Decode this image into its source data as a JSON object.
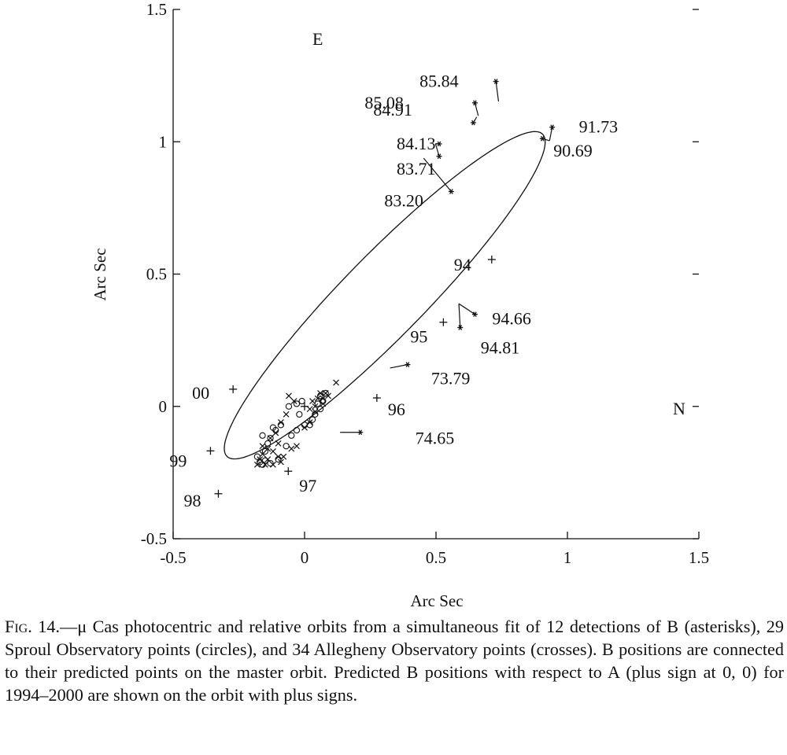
{
  "chart_data": {
    "type": "scatter",
    "xlabel": "Arc Sec",
    "ylabel": "Arc Sec",
    "xlim": [
      -0.5,
      1.5
    ],
    "ylim": [
      -0.5,
      1.5
    ],
    "xticks": [
      -0.5,
      0,
      0.5,
      1,
      1.5
    ],
    "yticks": [
      -0.5,
      0,
      0.5,
      1,
      1.5
    ],
    "xtick_labels": [
      "-0.5",
      "0",
      "0.5",
      "1",
      "1.5"
    ],
    "ytick_labels": [
      "-0.5",
      "0",
      "0.5",
      "1",
      "1.5"
    ],
    "direction_labels": {
      "east": "E",
      "north": "N"
    },
    "grid": false,
    "orbit": {
      "center": [
        0.305,
        0.42
      ],
      "semi_major": 0.855,
      "semi_minor": 0.155,
      "angle_deg": 45.4
    },
    "detections": [
      {
        "label": "85.84",
        "obs": [
          0.728,
          1.228
        ],
        "pred": [
          0.738,
          1.152
        ]
      },
      {
        "label": "85.08",
        "obs": [
          0.648,
          1.147
        ],
        "pred": [
          0.661,
          1.098
        ]
      },
      {
        "label": "84.91",
        "obs": [
          0.642,
          1.072
        ],
        "pred": [
          0.655,
          1.094
        ]
      },
      {
        "label": "91.73",
        "obs": [
          0.942,
          1.055
        ],
        "pred": [
          0.932,
          1.004
        ]
      },
      {
        "label": "90.69",
        "obs": [
          0.905,
          1.012
        ],
        "pred": [
          0.932,
          1.004
        ]
      },
      {
        "label": "84.13",
        "obs": [
          0.512,
          0.992
        ],
        "pred": [
          0.498,
          0.993
        ]
      },
      {
        "label": "83.71",
        "obs": [
          0.512,
          0.945
        ],
        "pred": [
          0.498,
          0.993
        ]
      },
      {
        "label": "83.20",
        "obs": [
          0.558,
          0.812
        ],
        "pred": [
          0.453,
          0.938
        ]
      },
      {
        "label": "94.66",
        "obs": [
          0.648,
          0.348
        ],
        "pred": [
          0.587,
          0.388
        ]
      },
      {
        "label": "94.81",
        "obs": [
          0.592,
          0.298
        ],
        "pred": [
          0.587,
          0.388
        ]
      },
      {
        "label": "73.79",
        "obs": [
          0.392,
          0.158
        ],
        "pred": [
          0.325,
          0.145
        ]
      },
      {
        "label": "74.65",
        "obs": [
          0.212,
          -0.098
        ],
        "pred": [
          0.135,
          -0.098
        ]
      }
    ],
    "predicted_positions": [
      {
        "label": "94",
        "x": 0.712,
        "y": 0.555
      },
      {
        "label": "95",
        "x": 0.528,
        "y": 0.318
      },
      {
        "label": "96",
        "x": 0.275,
        "y": 0.032
      },
      {
        "label": "97",
        "x": -0.062,
        "y": -0.245
      },
      {
        "label": "98",
        "x": -0.328,
        "y": -0.33
      },
      {
        "label": "99",
        "x": -0.358,
        "y": -0.168
      },
      {
        "label": "00",
        "x": -0.272,
        "y": 0.065
      }
    ],
    "origin_marker": [
      0.0,
      0.0
    ],
    "sproul_circles": [
      [
        -0.17,
        -0.21
      ],
      [
        -0.16,
        -0.22
      ],
      [
        -0.15,
        -0.205
      ],
      [
        -0.13,
        -0.215
      ],
      [
        -0.1,
        -0.2
      ],
      [
        -0.18,
        -0.19
      ],
      [
        -0.15,
        -0.17
      ],
      [
        -0.14,
        -0.14
      ],
      [
        -0.13,
        -0.12
      ],
      [
        -0.11,
        -0.09
      ],
      [
        -0.09,
        -0.07
      ],
      [
        -0.07,
        -0.15
      ],
      [
        -0.05,
        -0.11
      ],
      [
        -0.03,
        -0.09
      ],
      [
        0.0,
        -0.07
      ],
      [
        0.02,
        -0.07
      ],
      [
        0.04,
        -0.03
      ],
      [
        0.06,
        -0.01
      ],
      [
        0.06,
        0.04
      ],
      [
        0.07,
        0.02
      ],
      [
        0.08,
        0.05
      ],
      [
        -0.01,
        0.02
      ],
      [
        -0.03,
        0.01
      ],
      [
        -0.06,
        0.0
      ],
      [
        0.03,
        -0.05
      ],
      [
        0.05,
        0.01
      ],
      [
        -0.16,
        -0.11
      ],
      [
        -0.12,
        -0.08
      ],
      [
        -0.02,
        -0.03
      ]
    ],
    "allegheny_crosses": [
      [
        -0.18,
        -0.22
      ],
      [
        -0.17,
        -0.2
      ],
      [
        -0.16,
        -0.18
      ],
      [
        -0.15,
        -0.22
      ],
      [
        -0.14,
        -0.2
      ],
      [
        -0.12,
        -0.22
      ],
      [
        -0.1,
        -0.19
      ],
      [
        -0.09,
        -0.21
      ],
      [
        -0.08,
        -0.19
      ],
      [
        -0.14,
        -0.16
      ],
      [
        -0.13,
        -0.12
      ],
      [
        -0.11,
        -0.1
      ],
      [
        -0.09,
        -0.06
      ],
      [
        -0.07,
        -0.03
      ],
      [
        -0.05,
        -0.16
      ],
      [
        -0.03,
        -0.15
      ],
      [
        0.0,
        -0.08
      ],
      [
        0.02,
        -0.06
      ],
      [
        0.04,
        0.0
      ],
      [
        0.05,
        0.03
      ],
      [
        0.07,
        0.03
      ],
      [
        0.08,
        0.05
      ],
      [
        0.09,
        0.04
      ],
      [
        0.06,
        0.05
      ],
      [
        0.12,
        0.09
      ],
      [
        -0.06,
        0.04
      ],
      [
        0.02,
        -0.01
      ],
      [
        0.03,
        0.02
      ],
      [
        -0.04,
        0.02
      ],
      [
        -0.16,
        -0.15
      ],
      [
        -0.12,
        -0.17
      ],
      [
        0.04,
        -0.02
      ],
      [
        0.07,
        0.01
      ],
      [
        -0.1,
        -0.14
      ]
    ]
  },
  "caption": {
    "lead": "Fig. 14.",
    "text": "—μ Cas photocentric and relative orbits from a simultaneous fit of 12 detections of B (asterisks), 29 Sproul Observatory points (circles), and 34 Allegheny Observatory points (crosses). B positions are connected to their predicted points on the master orbit. Predicted B positions with respect to A (plus sign at 0, 0) for 1994–2000 are shown on the orbit with plus signs."
  }
}
